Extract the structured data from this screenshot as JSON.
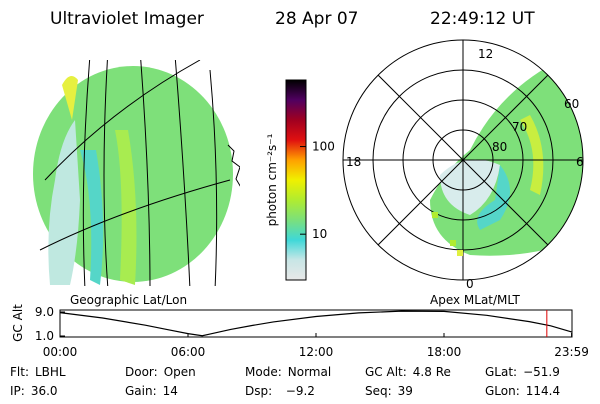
{
  "header": {
    "title": "Ultraviolet Imager",
    "date": "28 Apr 07",
    "time": "22:49:12 UT"
  },
  "colorbar": {
    "label": "photon cm⁻²s⁻¹",
    "log": true,
    "clim": [
      3,
      575
    ],
    "ticks": [
      10,
      100
    ],
    "colors": [
      "#e8e8e8",
      "#c8e6e6",
      "#3fd8d8",
      "#7be07b",
      "#b0ec30",
      "#f0f000",
      "#ffa000",
      "#e01010",
      "#a00020",
      "#500060",
      "#000000"
    ]
  },
  "left_panel": {
    "label": "Geographic Lat/Lon"
  },
  "right_panel": {
    "label": "Apex MLat/MLT",
    "mlt_labels": [
      "12",
      "18",
      "6",
      "0"
    ],
    "lat_labels": [
      "60",
      "70",
      "80"
    ]
  },
  "chart_data": {
    "type": "line",
    "ylabel": "GC Alt",
    "x": [
      0,
      2,
      4,
      5,
      6,
      6.67,
      7,
      8,
      9,
      10,
      12,
      14,
      16,
      18,
      20,
      22,
      23,
      24
    ],
    "series": [
      {
        "name": "GC Alt",
        "color": "#000000",
        "values": [
          8.8,
          7.0,
          4.6,
          3.2,
          1.8,
          1.1,
          1.6,
          3.2,
          4.5,
          5.7,
          7.5,
          8.7,
          9.3,
          9.2,
          7.9,
          5.8,
          4.4,
          2.3
        ]
      }
    ],
    "xlim": [
      0,
      24
    ],
    "xticks": [
      {
        "value": 0,
        "label": "00:00"
      },
      {
        "value": 6,
        "label": "06:00"
      },
      {
        "value": 12,
        "label": "12:00"
      },
      {
        "value": 18,
        "label": "18:00"
      },
      {
        "value": 23.98,
        "label": "23:59"
      }
    ],
    "ylim": [
      0.67,
      9.67
    ],
    "yticks": [
      {
        "value": 1.0,
        "label": "1.0"
      },
      {
        "value": 9.0,
        "label": "9.0"
      }
    ],
    "now_line": {
      "x": 22.82,
      "color": "#dd0000"
    }
  },
  "footer": [
    [
      {
        "label": "Flt:",
        "value": "LBHL"
      },
      {
        "label": "Door:",
        "value": "Open"
      },
      {
        "label": "Mode:",
        "value": "Normal"
      },
      {
        "label": "GC Alt:",
        "value": "4.8 Re"
      },
      {
        "label": "GLat:",
        "value": "−51.9"
      }
    ],
    [
      {
        "label": "IP:",
        "value": "36.0"
      },
      {
        "label": "Gain:",
        "value": "14"
      },
      {
        "label": "Dsp:",
        "value": "  −9.2"
      },
      {
        "label": "Seq:",
        "value": "39"
      },
      {
        "label": "GLon:",
        "value": "114.4"
      }
    ]
  ]
}
